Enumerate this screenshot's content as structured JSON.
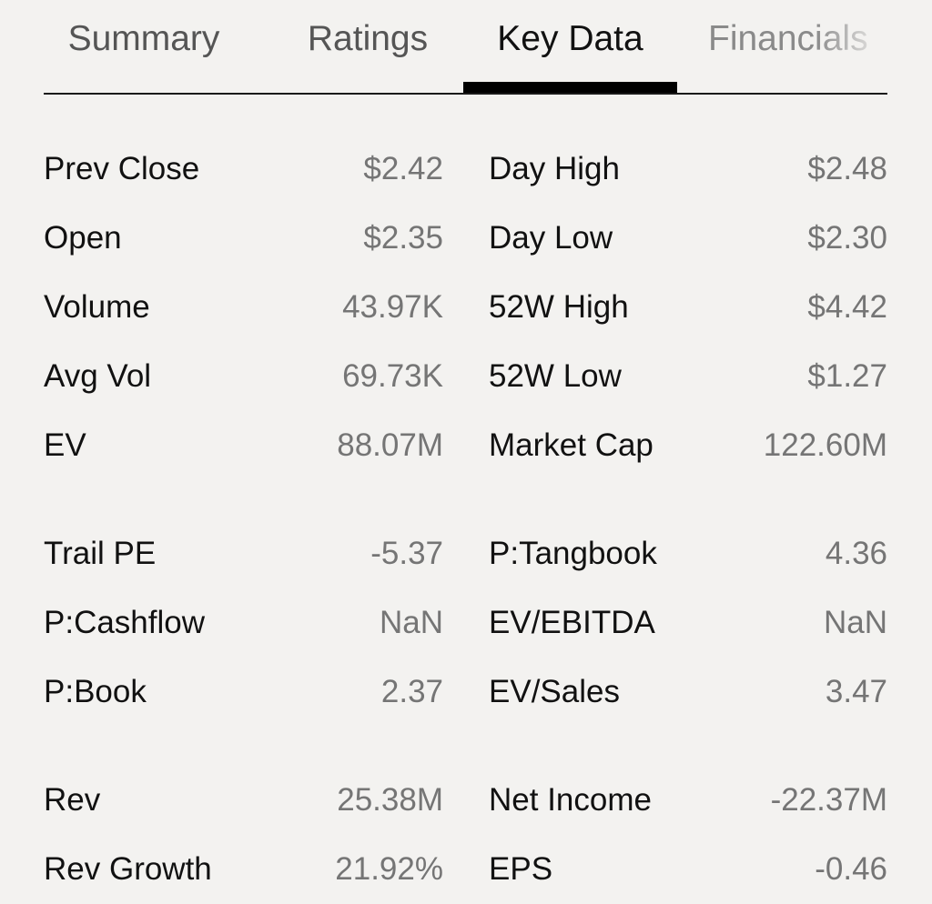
{
  "tabs": [
    {
      "label": "Summary",
      "active": false
    },
    {
      "label": "Ratings",
      "active": false
    },
    {
      "label": "Key Data",
      "active": true
    },
    {
      "label": "Financials",
      "active": false
    }
  ],
  "groups": [
    {
      "rows": [
        {
          "left": {
            "label": "Prev Close",
            "value": "$2.42"
          },
          "right": {
            "label": "Day High",
            "value": "$2.48"
          }
        },
        {
          "left": {
            "label": "Open",
            "value": "$2.35"
          },
          "right": {
            "label": "Day Low",
            "value": "$2.30"
          }
        },
        {
          "left": {
            "label": "Volume",
            "value": "43.97K"
          },
          "right": {
            "label": "52W High",
            "value": "$4.42"
          }
        },
        {
          "left": {
            "label": "Avg Vol",
            "value": "69.73K"
          },
          "right": {
            "label": "52W Low",
            "value": "$1.27"
          }
        },
        {
          "left": {
            "label": "EV",
            "value": "88.07M"
          },
          "right": {
            "label": "Market Cap",
            "value": "122.60M"
          }
        }
      ]
    },
    {
      "rows": [
        {
          "left": {
            "label": "Trail PE",
            "value": "-5.37"
          },
          "right": {
            "label": "P:Tangbook",
            "value": "4.36"
          }
        },
        {
          "left": {
            "label": "P:Cashflow",
            "value": "NaN"
          },
          "right": {
            "label": "EV/EBITDA",
            "value": "NaN"
          }
        },
        {
          "left": {
            "label": "P:Book",
            "value": "2.37"
          },
          "right": {
            "label": "EV/Sales",
            "value": "3.47"
          }
        }
      ]
    },
    {
      "rows": [
        {
          "left": {
            "label": "Rev",
            "value": "25.38M"
          },
          "right": {
            "label": "Net Income",
            "value": "-22.37M"
          }
        },
        {
          "left": {
            "label": "Rev Growth",
            "value": "21.92%"
          },
          "right": {
            "label": "EPS",
            "value": "-0.46"
          }
        }
      ]
    }
  ]
}
